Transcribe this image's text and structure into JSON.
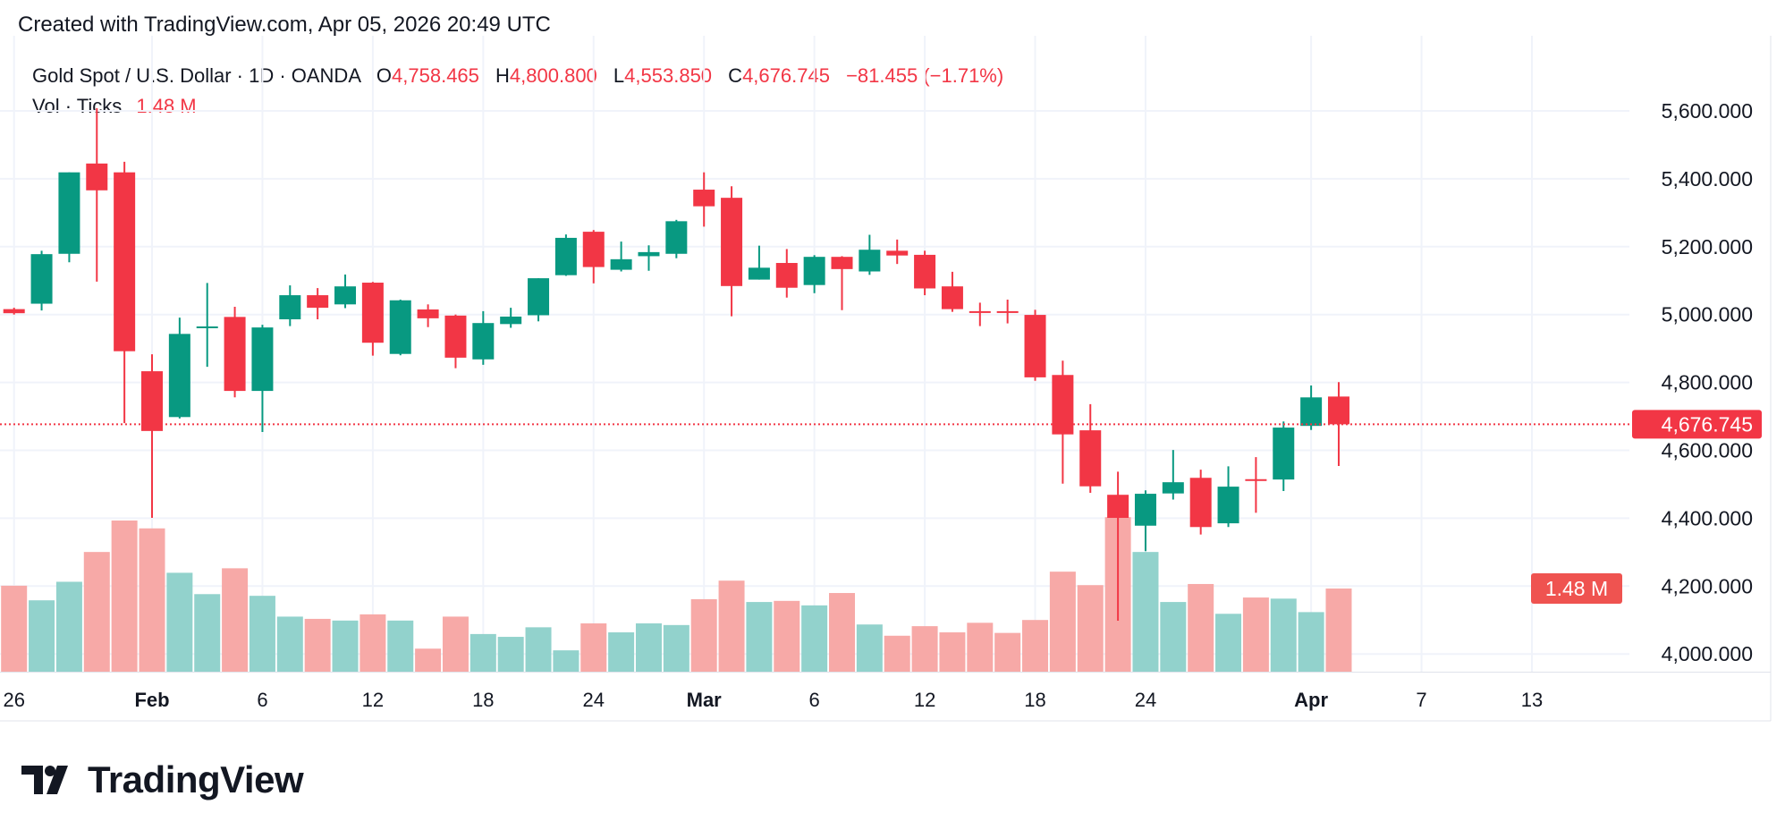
{
  "header": {
    "created": "Created with TradingView.com, Apr 05, 2026 20:49 UTC"
  },
  "legend": {
    "symbol": "Gold Spot / U.S. Dollar · 1D · OANDA",
    "o_label": "O",
    "o": "4,758.465",
    "h_label": "H",
    "h": "4,800.800",
    "l_label": "L",
    "l": "4,553.850",
    "c_label": "C",
    "c": "4,676.745",
    "change": "−81.455 (−1.71%)",
    "vol_label": "Vol · Ticks",
    "vol": "1.48 M"
  },
  "logo": {
    "text": "TradingView"
  },
  "colors": {
    "up": "#089981",
    "down": "#f23645",
    "vol_up": "#92d2cc",
    "vol_down": "#f7a9a7",
    "grid": "#f0f3fa"
  },
  "chart_data": {
    "type": "candlestick",
    "symbol": "Gold Spot / U.S. Dollar",
    "interval": "1D",
    "dates": [
      "2026-01-26",
      "2026-01-27",
      "2026-01-28",
      "2026-01-29",
      "2026-01-30",
      "2026-02-02",
      "2026-02-03",
      "2026-02-04",
      "2026-02-05",
      "2026-02-06",
      "2026-02-09",
      "2026-02-10",
      "2026-02-11",
      "2026-02-12",
      "2026-02-13",
      "2026-02-16",
      "2026-02-17",
      "2026-02-18",
      "2026-02-19",
      "2026-02-20",
      "2026-02-23",
      "2026-02-24",
      "2026-02-25",
      "2026-02-26",
      "2026-02-27",
      "2026-03-02",
      "2026-03-03",
      "2026-03-04",
      "2026-03-05",
      "2026-03-06",
      "2026-03-09",
      "2026-03-10",
      "2026-03-11",
      "2026-03-12",
      "2026-03-13",
      "2026-03-16",
      "2026-03-17",
      "2026-03-18",
      "2026-03-19",
      "2026-03-20",
      "2026-03-23",
      "2026-03-24",
      "2026-03-25",
      "2026-03-26",
      "2026-03-27",
      "2026-03-30",
      "2026-03-31",
      "2026-04-01",
      "2026-04-02"
    ],
    "open": [
      5016,
      5032,
      5179,
      5445,
      5419,
      4833,
      4698,
      4960,
      4993,
      4775,
      4986,
      5057,
      5030,
      5094,
      4884,
      5015,
      4997,
      4868,
      4972,
      4998,
      5116,
      5244,
      5132,
      5172,
      5179,
      5368,
      5344,
      5103,
      5152,
      5087,
      5170,
      5127,
      5188,
      5176,
      5083,
      5010,
      5010,
      4999,
      4822,
      4659,
      4469,
      4378,
      4473,
      4519,
      4385,
      4515,
      4514,
      4672,
      4758.465
    ],
    "high": [
      5020,
      5188,
      5419,
      5608,
      5450,
      4883,
      4991,
      5093,
      5023,
      4970,
      5086,
      5078,
      5118,
      5096,
      5044,
      5030,
      5000,
      5010,
      5020,
      5107,
      5236,
      5249,
      5215,
      5204,
      5279,
      5419,
      5378,
      5203,
      5193,
      5175,
      5172,
      5235,
      5221,
      5188,
      5126,
      5035,
      5044,
      5014,
      4864,
      4736,
      4537,
      4482,
      4601,
      4543,
      4553,
      4580,
      4685,
      4791,
      4800.8
    ],
    "low": [
      5000,
      5012,
      5154,
      5097,
      4680,
      4401,
      4694,
      4846,
      4756,
      4654,
      4966,
      4986,
      5019,
      4879,
      4880,
      4963,
      4842,
      4852,
      4961,
      4980,
      5114,
      5092,
      5127,
      5129,
      5166,
      5259,
      4995,
      5103,
      5050,
      5063,
      5013,
      5117,
      5149,
      5057,
      5008,
      4966,
      4974,
      4805,
      4502,
      4475,
      4098,
      4303,
      4455,
      4352,
      4374,
      4416,
      4480,
      4660,
      4553.85
    ],
    "close": [
      5004,
      5178,
      5419,
      5366,
      4892,
      4657,
      4943,
      4965,
      4775,
      4962,
      5057,
      5020,
      5083,
      4917,
      5042,
      4989,
      4873,
      4975,
      4994,
      5107,
      5226,
      5140,
      5163,
      5184,
      5275,
      5319,
      5084,
      5138,
      5079,
      5170,
      5134,
      5191,
      5174,
      5077,
      5016,
      5006,
      5007,
      4815,
      4647,
      4494,
      4401,
      4472,
      4506,
      4374,
      4493,
      4511,
      4667,
      4756,
      4676.745
    ],
    "volume_millions": [
      1.53,
      1.27,
      1.6,
      2.13,
      2.69,
      2.55,
      1.76,
      1.38,
      1.84,
      1.35,
      0.98,
      0.94,
      0.91,
      1.02,
      0.91,
      0.41,
      0.98,
      0.67,
      0.62,
      0.79,
      0.38,
      0.86,
      0.7,
      0.86,
      0.83,
      1.29,
      1.62,
      1.24,
      1.26,
      1.18,
      1.4,
      0.84,
      0.64,
      0.81,
      0.7,
      0.87,
      0.69,
      0.92,
      1.78,
      1.54,
      2.75,
      2.13,
      1.24,
      1.56,
      1.03,
      1.32,
      1.3,
      1.06,
      1.48
    ],
    "last_price": 4676.745,
    "last_price_label": "4,676.745",
    "last_volume_label": "1.48 M",
    "y_ticks": [
      "5,600.000",
      "5,400.000",
      "5,200.000",
      "5,000.000",
      "4,800.000",
      "4,600.000",
      "4,400.000",
      "4,200.000",
      "4,000.000"
    ],
    "y_tick_values": [
      5600,
      5400,
      5200,
      5000,
      4800,
      4600,
      4400,
      4200,
      4000
    ],
    "x_ticks": [
      {
        "label": "26",
        "date": "2026-01-26"
      },
      {
        "label": "Feb",
        "date": "2026-02-02",
        "bold": true
      },
      {
        "label": "6",
        "date": "2026-02-06"
      },
      {
        "label": "12",
        "date": "2026-02-12"
      },
      {
        "label": "18",
        "date": "2026-02-18"
      },
      {
        "label": "24",
        "date": "2026-02-24"
      },
      {
        "label": "Mar",
        "date": "2026-03-02",
        "bold": true
      },
      {
        "label": "6",
        "date": "2026-03-06"
      },
      {
        "label": "12",
        "date": "2026-03-12"
      },
      {
        "label": "18",
        "date": "2026-03-18"
      },
      {
        "label": "24",
        "date": "2026-03-24"
      },
      {
        "label": "Apr",
        "date": "2026-04-01",
        "bold": true
      },
      {
        "label": "7",
        "date": "2026-04-07"
      },
      {
        "label": "13",
        "date": "2026-04-13"
      }
    ],
    "grid": true
  }
}
